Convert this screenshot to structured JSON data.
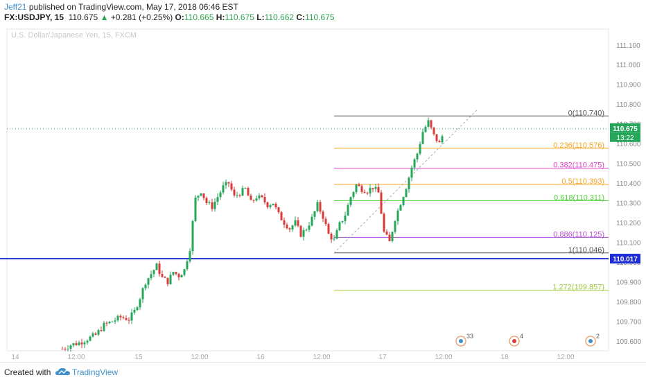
{
  "header": {
    "author": "Jeff21",
    "published_text": " published on TradingView.com, May 17, 2018 06:46 EST",
    "symbol": "FX:USDJPY, 15",
    "last_price": "110.675",
    "change_arrow": "▲",
    "change": "+0.281 (+0.25%)",
    "o_label": "O:",
    "o_value": "110.665",
    "h_label": "H:",
    "h_value": "110.675",
    "l_label": "L:",
    "l_value": "110.662",
    "c_label": "C:",
    "c_value": "110.675"
  },
  "footer": {
    "created_with": "Created with",
    "brand": "TradingView"
  },
  "colors": {
    "up_candle": "#26a65b",
    "down_candle": "#d93b3b",
    "horizontal_line": "#1d2bd6",
    "fib_black": "#555555",
    "fib_orange": "#f5a623",
    "fib_magenta": "#e040c8",
    "fib_green": "#4cd137",
    "fib_purple": "#b04ad4",
    "fib_lime": "#a0c83c",
    "last_price_badge": "#26a65b"
  },
  "chart_data": {
    "type": "candlestick",
    "title": "U.S. Dollar/Japanese Yen, 15, FXCM",
    "ylim": [
      109.55,
      111.18
    ],
    "y_ticks": [
      "111.100",
      "111.000",
      "110.900",
      "110.800",
      "110.700",
      "110.600",
      "110.500",
      "110.400",
      "110.300",
      "110.200",
      "110.100",
      "110.000",
      "109.900",
      "109.800",
      "109.700",
      "109.600"
    ],
    "x_ticks": [
      "14",
      "12:00",
      "15",
      "12:00",
      "16",
      "12:00",
      "17",
      "12:00",
      "18",
      "12:00"
    ],
    "last_price_label": "110.675",
    "countdown": "13:22",
    "horizontal_line": {
      "value": 110.017,
      "label": "110.017"
    },
    "fib_levels": [
      {
        "label": "0(110.740)",
        "value": 110.74,
        "color_key": "fib_black"
      },
      {
        "label": "0.236(110.576)",
        "value": 110.576,
        "color_key": "fib_orange"
      },
      {
        "label": "0.382(110.475)",
        "value": 110.475,
        "color_key": "fib_magenta"
      },
      {
        "label": "0.5(110.393)",
        "value": 110.393,
        "color_key": "fib_orange"
      },
      {
        "label": "0.618(110.311)",
        "value": 110.311,
        "color_key": "fib_green"
      },
      {
        "label": "0.886(110.125)",
        "value": 110.125,
        "color_key": "fib_purple"
      },
      {
        "label": "1(110.046)",
        "value": 110.046,
        "color_key": "fib_black"
      },
      {
        "label": "1.272(109.857)",
        "value": 109.857,
        "color_key": "fib_lime"
      }
    ],
    "price_path": [
      [
        0,
        109.56
      ],
      [
        3,
        109.58
      ],
      [
        6,
        109.59
      ],
      [
        9,
        109.61
      ],
      [
        12,
        109.63
      ],
      [
        15,
        109.68
      ],
      [
        18,
        109.7
      ],
      [
        21,
        109.72
      ],
      [
        24,
        109.71
      ],
      [
        26,
        109.75
      ],
      [
        28,
        109.82
      ],
      [
        30,
        109.9
      ],
      [
        32,
        109.94
      ],
      [
        34,
        109.98
      ],
      [
        36,
        109.92
      ],
      [
        38,
        109.9
      ],
      [
        40,
        109.95
      ],
      [
        42,
        109.93
      ],
      [
        44,
        109.96
      ],
      [
        46,
        110.07
      ],
      [
        47,
        110.2
      ],
      [
        48,
        110.32
      ],
      [
        50,
        110.36
      ],
      [
        52,
        110.3
      ],
      [
        54,
        110.28
      ],
      [
        56,
        110.33
      ],
      [
        58,
        110.38
      ],
      [
        60,
        110.4
      ],
      [
        62,
        110.33
      ],
      [
        64,
        110.35
      ],
      [
        66,
        110.37
      ],
      [
        68,
        110.3
      ],
      [
        70,
        110.33
      ],
      [
        72,
        110.32
      ],
      [
        74,
        110.29
      ],
      [
        76,
        110.3
      ],
      [
        78,
        110.24
      ],
      [
        80,
        110.2
      ],
      [
        82,
        110.17
      ],
      [
        84,
        110.2
      ],
      [
        86,
        110.14
      ],
      [
        88,
        110.17
      ],
      [
        90,
        110.22
      ],
      [
        92,
        110.29
      ],
      [
        94,
        110.23
      ],
      [
        96,
        110.14
      ],
      [
        98,
        110.11
      ],
      [
        100,
        110.19
      ],
      [
        102,
        110.24
      ],
      [
        104,
        110.33
      ],
      [
        106,
        110.39
      ],
      [
        108,
        110.37
      ],
      [
        110,
        110.36
      ],
      [
        112,
        110.38
      ],
      [
        114,
        110.35
      ],
      [
        116,
        110.15
      ],
      [
        118,
        110.1
      ],
      [
        120,
        110.22
      ],
      [
        122,
        110.3
      ],
      [
        124,
        110.38
      ],
      [
        126,
        110.48
      ],
      [
        128,
        110.55
      ],
      [
        130,
        110.66
      ],
      [
        132,
        110.71
      ],
      [
        134,
        110.64
      ],
      [
        136,
        110.6
      ],
      [
        138,
        110.675
      ]
    ],
    "event_markers": [
      {
        "label": "33"
      },
      {
        "label": "4"
      },
      {
        "label": "2"
      }
    ]
  }
}
